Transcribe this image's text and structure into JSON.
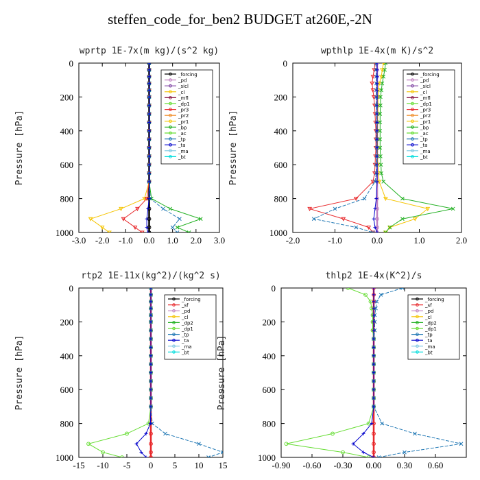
{
  "suptitle": "steffen_code_for_ben2  BUDGET at260E,-2N",
  "chart_data": [
    {
      "type": "line",
      "title": "wprtp   1E-7x(m kg)/(s^2 kg)",
      "ylabel": "Pressure [hPa]",
      "xlim": [
        -3.0,
        3.0
      ],
      "ylim": [
        1000,
        0
      ],
      "xticks": [
        "-3.0",
        "-2.0",
        "-1.0",
        "0.0",
        "1.0",
        "2.0",
        "3.0"
      ],
      "xtick_values": [
        -3,
        -2,
        -1,
        0,
        1,
        2,
        3
      ],
      "yticks": [
        "0",
        "200",
        "400",
        "600",
        "800",
        "1000"
      ],
      "ytick_values": [
        0,
        200,
        400,
        600,
        800,
        1000
      ],
      "legend": [
        "_forcing",
        "_pd",
        "_sicl",
        "_cl",
        "_mfl",
        "_dp1",
        "_pr3",
        "_pr2",
        "_pr1",
        "_bp",
        "_ac",
        "_tp",
        "_ta",
        "_ma",
        "_bt"
      ],
      "series": [
        {
          "name": "_forcing",
          "color": "#000000",
          "marker": "circle",
          "values": [
            0,
            0,
            0,
            0,
            0,
            0,
            0,
            0,
            0,
            0,
            0,
            0,
            0,
            0,
            0,
            0,
            0,
            0,
            0,
            0,
            0
          ]
        },
        {
          "name": "_pr1",
          "color": "#f5c400",
          "marker": "tri",
          "values": [
            0,
            0,
            0,
            0,
            0,
            0,
            0,
            0,
            0,
            0,
            0,
            0,
            0,
            0,
            0,
            0,
            -0.2,
            -1.2,
            -2.5,
            -2.0,
            -1.7
          ]
        },
        {
          "name": "_dp1",
          "color": "#e8272a",
          "marker": "tri",
          "values": [
            0,
            0,
            0,
            0,
            0,
            0,
            0,
            0,
            0,
            0,
            0,
            0,
            0,
            0,
            0,
            0,
            -0.1,
            -0.5,
            -1.1,
            -0.6,
            -0.3
          ]
        },
        {
          "name": "_bp",
          "color": "#22b022",
          "marker": "x",
          "values": [
            0,
            0,
            0,
            0,
            0,
            0,
            0,
            0,
            0,
            0,
            0,
            0,
            0,
            0,
            0,
            0,
            0.1,
            0.9,
            2.2,
            1.2,
            1.7
          ]
        },
        {
          "name": "_tp",
          "color": "#1f77b4",
          "marker": "x",
          "values": [
            0,
            0,
            0,
            0,
            0,
            0,
            0,
            0,
            0,
            0,
            0,
            0,
            0,
            0,
            0,
            0,
            0.05,
            0.6,
            1.3,
            1.0,
            1.2
          ]
        },
        {
          "name": "_ta",
          "color": "#0000cc",
          "marker": "plus",
          "values": [
            0,
            0,
            0,
            0,
            0,
            0,
            0,
            0,
            0,
            0,
            0,
            0,
            0,
            0,
            0,
            0,
            0,
            -0.05,
            -0.1,
            -0.1,
            -0.05
          ]
        }
      ],
      "y": [
        0,
        40,
        80,
        120,
        160,
        200,
        250,
        300,
        350,
        400,
        450,
        500,
        550,
        600,
        650,
        700,
        800,
        860,
        920,
        970,
        1000
      ]
    },
    {
      "type": "line",
      "title": "wpthlp   1E-4x(m K)/s^2",
      "ylabel": "Pressure [hPa]",
      "xlim": [
        -2.0,
        2.0
      ],
      "ylim": [
        1000,
        0
      ],
      "xticks": [
        "-2.0",
        "-1.0",
        "0.0",
        "1.0",
        "2.0"
      ],
      "xtick_values": [
        -2,
        -1,
        0,
        1,
        2
      ],
      "yticks": [
        "0",
        "200",
        "400",
        "600",
        "800",
        "1000"
      ],
      "ytick_values": [
        0,
        200,
        400,
        600,
        800,
        1000
      ],
      "legend": [
        "_forcing",
        "_pd",
        "_sicl",
        "_cl",
        "_mfl",
        "_dp1",
        "_pr3",
        "_pr2",
        "_pr1",
        "_bp",
        "_ac",
        "_tp",
        "_ta",
        "_ma",
        "_bt"
      ],
      "series": [
        {
          "name": "_forcing",
          "color": "#c080c0",
          "marker": "circle",
          "values": [
            0,
            0,
            0,
            0,
            0,
            0,
            0,
            0,
            0,
            0,
            0,
            0,
            0,
            0,
            0,
            0,
            0,
            0,
            0,
            0,
            0
          ]
        },
        {
          "name": "_pr1",
          "color": "#f5c400",
          "marker": "tri",
          "values": [
            0.15,
            0.12,
            0.1,
            0.05,
            0.03,
            0.02,
            0.02,
            0.02,
            0.01,
            0.01,
            0.01,
            0.01,
            0.01,
            0.02,
            0.03,
            0.05,
            0.2,
            1.2,
            0.9,
            0.3,
            0.2
          ]
        },
        {
          "name": "_dp1",
          "color": "#e8272a",
          "marker": "tri",
          "values": [
            -0.05,
            -0.07,
            -0.1,
            -0.12,
            -0.1,
            -0.08,
            -0.06,
            -0.05,
            -0.04,
            -0.03,
            -0.03,
            -0.03,
            -0.04,
            -0.05,
            -0.06,
            -0.1,
            -0.5,
            -1.6,
            -0.8,
            -0.2,
            -0.1
          ]
        },
        {
          "name": "_bp",
          "color": "#22b022",
          "marker": "x",
          "values": [
            0.2,
            0.18,
            0.15,
            0.12,
            0.1,
            0.08,
            0.08,
            0.07,
            0.07,
            0.07,
            0.07,
            0.07,
            0.08,
            0.09,
            0.1,
            0.15,
            0.6,
            1.8,
            0.6,
            0.3,
            0.2
          ]
        },
        {
          "name": "_tp",
          "color": "#1f77b4",
          "marker": "x",
          "values": [
            -0.03,
            -0.03,
            -0.02,
            -0.02,
            -0.02,
            -0.02,
            -0.02,
            -0.01,
            -0.01,
            -0.01,
            -0.01,
            -0.01,
            -0.01,
            -0.02,
            -0.02,
            -0.05,
            -0.3,
            -1.0,
            -1.5,
            -0.5,
            -0.1
          ]
        },
        {
          "name": "_ta",
          "color": "#0000cc",
          "marker": "plus",
          "values": [
            0,
            0,
            0,
            0,
            0,
            0,
            0,
            0,
            0,
            0,
            0,
            0,
            0,
            0,
            0,
            0,
            -0.02,
            -0.05,
            -0.08,
            -0.05,
            0
          ]
        }
      ],
      "y": [
        0,
        40,
        80,
        120,
        160,
        200,
        250,
        300,
        350,
        400,
        450,
        500,
        550,
        600,
        650,
        700,
        800,
        860,
        920,
        970,
        1000
      ]
    },
    {
      "type": "line",
      "title": "rtp2   1E-11x(kg^2)/(kg^2 s)",
      "ylabel": "Pressure [hPa]",
      "xlim": [
        -15,
        15
      ],
      "ylim": [
        1000,
        0
      ],
      "xticks": [
        "-15",
        "-10",
        "-5",
        "0",
        "5",
        "10",
        "15"
      ],
      "xtick_values": [
        -15,
        -10,
        -5,
        0,
        5,
        10,
        15
      ],
      "yticks": [
        "0",
        "200",
        "400",
        "600",
        "800",
        "1000"
      ],
      "ytick_values": [
        0,
        200,
        400,
        600,
        800,
        1000
      ],
      "legend": [
        "_forcing",
        "_sf",
        "_pd",
        "_cl",
        "_dp2",
        "_dp1",
        "_tp",
        "_ta",
        "_ma",
        "_bt"
      ],
      "series": [
        {
          "name": "_forcing",
          "color": "#e8272a",
          "marker": "circle",
          "values": [
            0,
            0,
            0,
            0,
            0,
            0,
            0,
            0,
            0,
            0,
            0,
            0,
            0,
            0,
            0,
            0,
            0,
            0,
            0,
            0,
            0
          ]
        },
        {
          "name": "_dp1",
          "color": "#66dd33",
          "marker": "circle",
          "values": [
            0,
            0,
            0,
            0,
            0,
            0,
            0,
            0,
            0,
            0,
            0,
            0,
            0,
            0,
            0,
            0,
            -0.5,
            -5,
            -13,
            -10,
            -6
          ]
        },
        {
          "name": "_tp",
          "color": "#1f77b4",
          "marker": "x",
          "values": [
            0,
            0,
            0,
            0,
            0,
            0,
            0,
            0,
            0,
            0,
            0,
            0,
            0,
            0,
            0,
            0,
            0.3,
            3,
            10,
            15,
            12
          ]
        },
        {
          "name": "_ta",
          "color": "#0000cc",
          "marker": "plus",
          "values": [
            0,
            0,
            0,
            0,
            0,
            0,
            0,
            0,
            0,
            0,
            0,
            0,
            0,
            0,
            0,
            0,
            -0.1,
            -1,
            -3,
            -2,
            -1
          ]
        }
      ],
      "y": [
        0,
        40,
        80,
        120,
        160,
        200,
        250,
        300,
        350,
        400,
        450,
        500,
        550,
        600,
        650,
        700,
        800,
        860,
        920,
        970,
        1000
      ]
    },
    {
      "type": "line",
      "title": "thlp2   1E-4x(K^2)/s",
      "ylabel": "Pressure [hPa]",
      "xlim": [
        -0.9,
        0.9
      ],
      "ylim": [
        1000,
        0
      ],
      "xticks": [
        "-0.90",
        "-0.60",
        "-0.30",
        "0.00",
        "0.30",
        "0.60"
      ],
      "xtick_values": [
        -0.9,
        -0.6,
        -0.3,
        0,
        0.3,
        0.6
      ],
      "yticks": [
        "0",
        "200",
        "400",
        "600",
        "800",
        "1000"
      ],
      "ytick_values": [
        0,
        200,
        400,
        600,
        800,
        1000
      ],
      "legend": [
        "_forcing",
        "_sf",
        "_pd",
        "_cl",
        "_dp2",
        "_dp1",
        "_tp",
        "_ta",
        "_ma",
        "_bt"
      ],
      "series": [
        {
          "name": "_forcing",
          "color": "#e8272a",
          "marker": "circle",
          "values": [
            0,
            0,
            0,
            0,
            0,
            0,
            0,
            0,
            0,
            0,
            0,
            0,
            0,
            0,
            0,
            0,
            0,
            0,
            0,
            0,
            0
          ]
        },
        {
          "name": "_dp1",
          "color": "#66dd33",
          "marker": "circle",
          "values": [
            -0.25,
            -0.08,
            -0.03,
            -0.02,
            -0.01,
            -0.01,
            -0.01,
            0,
            0,
            0,
            0,
            0,
            0,
            0,
            0,
            0,
            -0.05,
            -0.4,
            -0.85,
            -0.3,
            -0.05
          ]
        },
        {
          "name": "_tp",
          "color": "#1f77b4",
          "marker": "x",
          "values": [
            0.28,
            0.07,
            0.03,
            0.02,
            0.01,
            0.01,
            0.01,
            0,
            0,
            0,
            0,
            0,
            0,
            0,
            0,
            0,
            0.08,
            0.4,
            0.85,
            0.3,
            0.05
          ]
        },
        {
          "name": "_ta",
          "color": "#0000cc",
          "marker": "plus",
          "values": [
            0,
            0,
            0,
            0,
            0,
            0,
            0,
            0,
            0,
            0,
            0,
            0,
            0,
            0,
            0,
            0,
            -0.02,
            -0.1,
            -0.2,
            -0.1,
            0
          ]
        }
      ],
      "y": [
        0,
        40,
        80,
        120,
        160,
        200,
        250,
        300,
        350,
        400,
        450,
        500,
        550,
        600,
        650,
        700,
        800,
        860,
        920,
        970,
        1000
      ]
    }
  ]
}
